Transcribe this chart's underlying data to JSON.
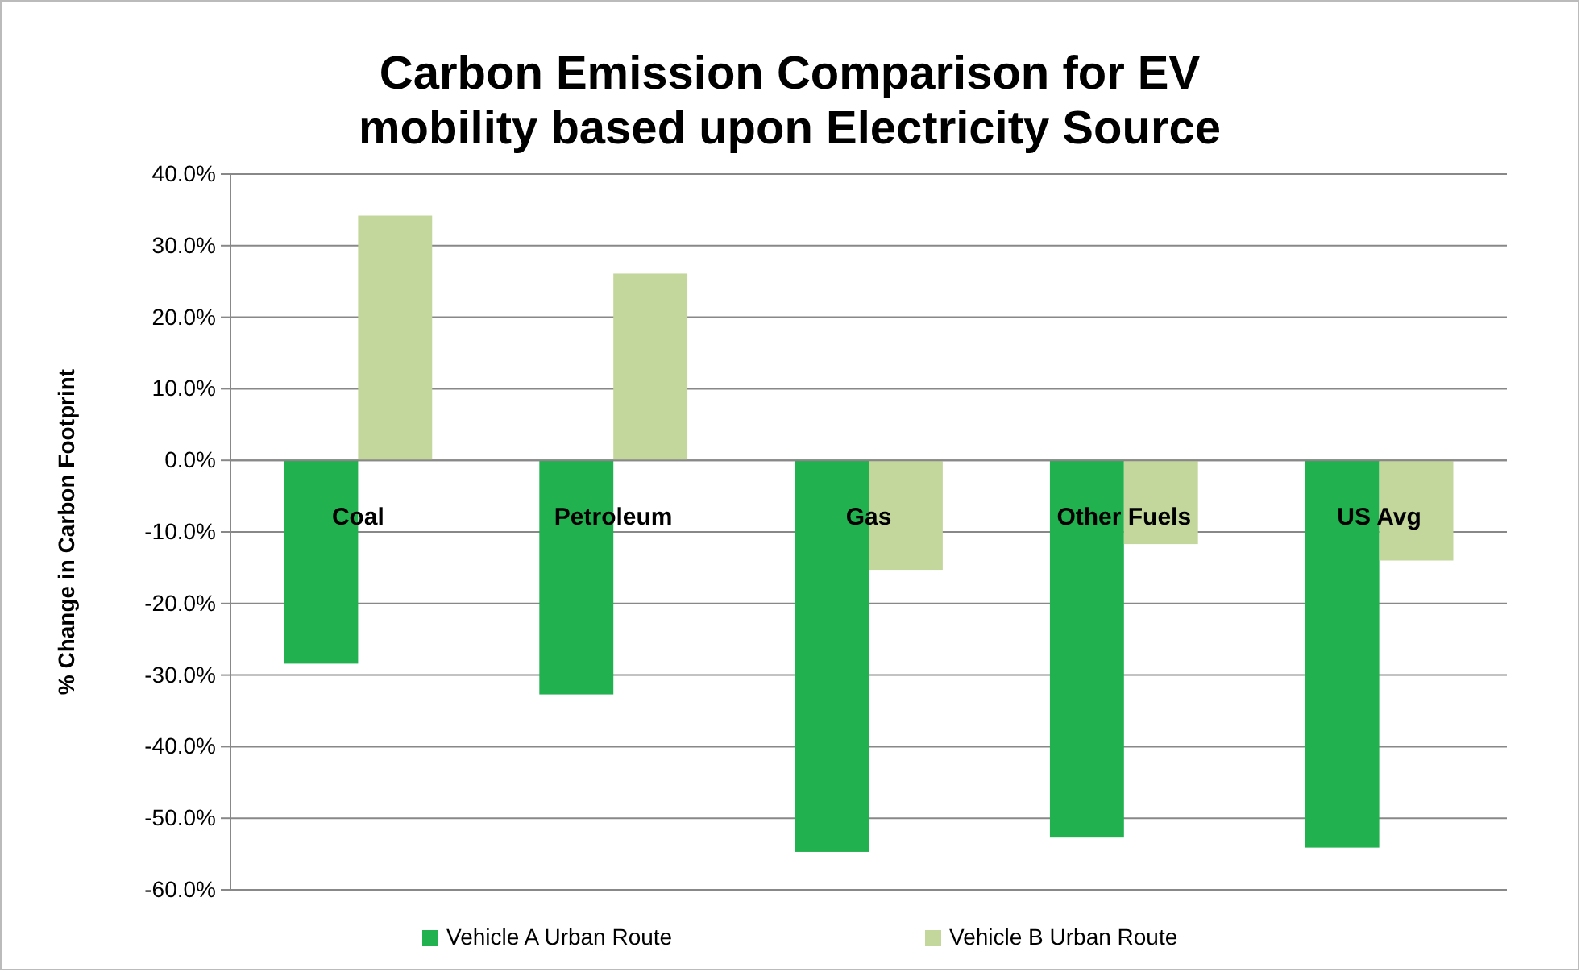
{
  "chart_data": {
    "type": "bar",
    "title": "Carbon Emission Comparison for EV mobility based upon Electricity Source",
    "ylabel": "% Change in Carbon Footprint",
    "categories": [
      "Coal",
      "Petroleum",
      "Gas",
      "Other Fuels",
      "US Avg"
    ],
    "series": [
      {
        "name": "Vehicle A Urban Route",
        "color": "#21b14f",
        "values": [
          -0.284,
          -0.327,
          -0.547,
          -0.527,
          -0.541
        ]
      },
      {
        "name": "Vehicle B Urban Route",
        "color": "#c3d69b",
        "values": [
          0.342,
          0.261,
          -0.153,
          -0.117,
          -0.14
        ]
      }
    ],
    "ylim": [
      -0.6,
      0.4
    ],
    "yticks": [
      {
        "value": -0.6,
        "label": "-60.0%"
      },
      {
        "value": -0.5,
        "label": "-50.0%"
      },
      {
        "value": -0.4,
        "label": "-40.0%"
      },
      {
        "value": -0.3,
        "label": "-30.0%"
      },
      {
        "value": -0.2,
        "label": "-20.0%"
      },
      {
        "value": -0.1,
        "label": "-10.0%"
      },
      {
        "value": 0,
        "label": "0.0%"
      },
      {
        "value": 0.1,
        "label": "10.0%"
      },
      {
        "value": 0.2,
        "label": "20.0%"
      },
      {
        "value": 0.3,
        "label": "30.0%"
      },
      {
        "value": 0.4,
        "label": "40.0%"
      }
    ],
    "grid": "y",
    "legend": "bottom"
  }
}
